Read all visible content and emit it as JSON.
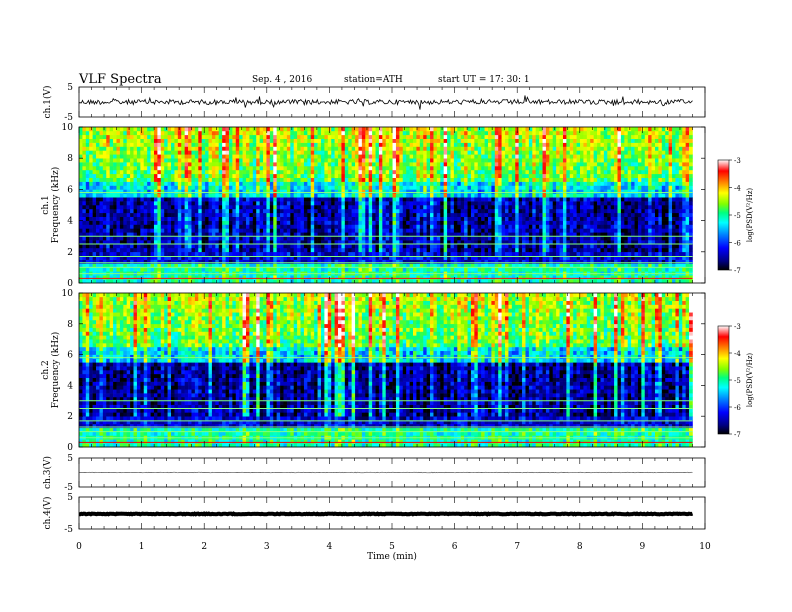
{
  "header": {
    "title": "VLF  Spectra",
    "date": "Sep. 4  , 2016",
    "station": "station=ATH",
    "start": "start  UT  =   17: 30: 1"
  },
  "chart_data": [
    {
      "type": "line",
      "ylabel": "ch.1(V)",
      "ylim": [
        -5,
        5
      ],
      "yticks": [
        "5",
        "-5"
      ],
      "xlim": [
        0,
        10
      ],
      "baseline": 0,
      "description_color": "#000000"
    },
    {
      "type": "heatmap",
      "ylabel_channel": "ch.1",
      "ylabel": "Frequency  (kHz)",
      "ylim": [
        0,
        10
      ],
      "yticks": [
        "0",
        "2",
        "4",
        "6",
        "8",
        "10"
      ],
      "xlim": [
        0,
        10
      ],
      "colorbar": {
        "label": "log(PSD(V²/Hz)",
        "ticks": [
          "-3",
          "-4",
          "-5",
          "-6",
          "-7"
        ],
        "range": [
          -7,
          -3
        ]
      }
    },
    {
      "type": "heatmap",
      "ylabel_channel": "ch.2",
      "ylabel": "Frequency  (kHz)",
      "ylim": [
        0,
        10
      ],
      "yticks": [
        "0",
        "2",
        "4",
        "6",
        "8",
        "10"
      ],
      "xlim": [
        0,
        10
      ],
      "colorbar": {
        "label": "log(PSD(V²/Hz)",
        "ticks": [
          "-3",
          "-4",
          "-5",
          "-6",
          "-7"
        ],
        "range": [
          -7,
          -3
        ]
      }
    },
    {
      "type": "line",
      "ylabel": "ch.3(V)",
      "ylim": [
        -5,
        5
      ],
      "yticks": [
        "5",
        "-5"
      ],
      "xlim": [
        0,
        10
      ],
      "baseline": 0
    },
    {
      "type": "line",
      "ylabel": "ch.4(V)",
      "ylim": [
        -5,
        5
      ],
      "yticks": [
        "5",
        "-5"
      ],
      "xlim": [
        0,
        10
      ],
      "baseline": -0.3
    }
  ],
  "xaxis": {
    "label": "Time  (min)",
    "ticks": [
      "0",
      "1",
      "2",
      "3",
      "4",
      "5",
      "6",
      "7",
      "8",
      "9",
      "10"
    ],
    "data_end": 9.8
  },
  "colors": {
    "colormap": [
      "#000000",
      "#00007f",
      "#0000ff",
      "#0080ff",
      "#00ffff",
      "#00ff80",
      "#80ff00",
      "#ffff00",
      "#ff8000",
      "#ff0000",
      "#ffffff"
    ]
  }
}
